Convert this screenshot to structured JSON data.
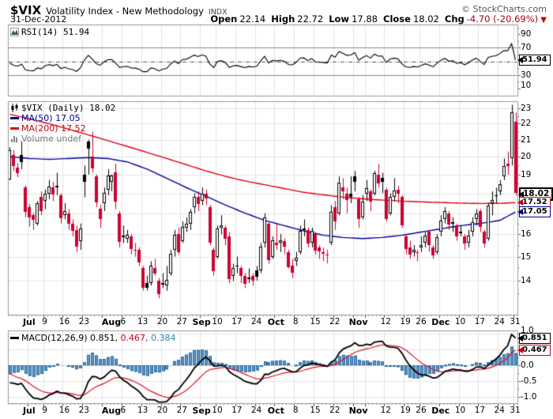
{
  "header": {
    "symbol": "$VIX",
    "title": "Volatility Index - New Methodology",
    "exchange": "INDX",
    "copyright": "© StockCharts.com",
    "date": "31-Dec-2012",
    "quote": [
      {
        "label": "Open",
        "value": "22.14"
      },
      {
        "label": "High",
        "value": "22.72"
      },
      {
        "label": "Low",
        "value": "17.88"
      },
      {
        "label": "Close",
        "value": "18.02"
      },
      {
        "label": "Chg",
        "value": "-4.70 (-20.69%)",
        "down": true
      }
    ],
    "down_arrow": "▼"
  },
  "rsi_panel": {
    "legend": "RSI(14) 51.94",
    "value": 51.94,
    "overbought": 70,
    "oversold": 30,
    "midline": 50,
    "range": [
      0,
      100
    ],
    "axis_ticks": [
      {
        "v": 90,
        "label": "90"
      },
      {
        "v": 70,
        "label": "70"
      },
      {
        "v": 30,
        "label": "30"
      },
      {
        "v": 10,
        "label": "10"
      }
    ],
    "tag": {
      "v": 51.94,
      "value": "51.94",
      "style": "rsi"
    }
  },
  "price_panel": {
    "legend": {
      "symbol": "$VIX (Daily) 18.02",
      "ma50": "MA(50) 17.05",
      "ma200": "MA(200) 17.52",
      "volume": "Volume undef"
    },
    "last": 18.02,
    "ma50_last": 17.05,
    "ma200_last": 17.52,
    "axis_ticks": [
      {
        "v": 23,
        "label": "23"
      },
      {
        "v": 22,
        "label": "22"
      },
      {
        "v": 21,
        "label": "21"
      },
      {
        "v": 20,
        "label": "20"
      },
      {
        "v": 19,
        "label": "19"
      },
      {
        "v": 16,
        "label": "16"
      },
      {
        "v": 15,
        "label": "15"
      },
      {
        "v": 14,
        "label": "14"
      }
    ],
    "grid_values": [
      14,
      15,
      16,
      17,
      18,
      19,
      20,
      21,
      22,
      23
    ],
    "tags": [
      {
        "v": 18.02,
        "value": "18.02",
        "style": "last"
      },
      {
        "v": 17.52,
        "value": "17.52",
        "style": "ma200"
      },
      {
        "v": 17.05,
        "value": "17.05",
        "style": "ma50"
      }
    ]
  },
  "macd_panel": {
    "legend_parts": [
      {
        "text": "MACD(12,26,9) 0.851,",
        "cls": ""
      },
      {
        "text": " 0.467,",
        "cls": "c-sig"
      },
      {
        "text": " 0.384",
        "cls": "c-hist"
      }
    ],
    "macd_last": 0.851,
    "signal_last": 0.467,
    "hist_last": 0.384,
    "range": [
      -1.2,
      1.1
    ],
    "axis_ticks": [
      {
        "v": 1.0,
        "label": "1.0"
      },
      {
        "v": 0.0,
        "label": "0.0"
      },
      {
        "v": -0.5,
        "label": "-0.5"
      },
      {
        "v": -1.0,
        "label": "-1.0"
      }
    ],
    "grid_values": [
      1.0,
      0.5,
      -0.5,
      -1.0
    ],
    "zero_line": 0.0,
    "tags": [
      {
        "v": 0.851,
        "value": "0.851",
        "style": "macd"
      },
      {
        "v": 0.467,
        "value": "0.467",
        "style": "ma200"
      }
    ]
  },
  "x_axis": {
    "week_indices": [
      5,
      9,
      14,
      19,
      24,
      29,
      34,
      39,
      44,
      49,
      53,
      58,
      63,
      68,
      73,
      78,
      83,
      88,
      91,
      96,
      101,
      105,
      110,
      115,
      120,
      125,
      129
    ],
    "labels": [
      {
        "text": "Jul",
        "i": 5,
        "bold": true
      },
      {
        "text": "9",
        "i": 9
      },
      {
        "text": "16",
        "i": 14
      },
      {
        "text": "23",
        "i": 19
      },
      {
        "text": "Aug",
        "i": 26,
        "bold": true
      },
      {
        "text": "6",
        "i": 29
      },
      {
        "text": "13",
        "i": 34
      },
      {
        "text": "20",
        "i": 39
      },
      {
        "text": "27",
        "i": 44
      },
      {
        "text": "Sep",
        "i": 49,
        "bold": true
      },
      {
        "text": "10",
        "i": 53
      },
      {
        "text": "17",
        "i": 58
      },
      {
        "text": "24",
        "i": 63
      },
      {
        "text": "Oct",
        "i": 68,
        "bold": true
      },
      {
        "text": "8",
        "i": 73
      },
      {
        "text": "15",
        "i": 78
      },
      {
        "text": "22",
        "i": 83
      },
      {
        "text": "Nov",
        "i": 89,
        "bold": true
      },
      {
        "text": "12",
        "i": 96
      },
      {
        "text": "19",
        "i": 101
      },
      {
        "text": "26",
        "i": 105
      },
      {
        "text": "Dec",
        "i": 110,
        "bold": true
      },
      {
        "text": "10",
        "i": 115
      },
      {
        "text": "17",
        "i": 120
      },
      {
        "text": "24",
        "i": 125
      },
      {
        "text": "31",
        "i": 129
      }
    ]
  },
  "chart_data": {
    "type": "candlestick",
    "symbol": "$VIX",
    "timeframe": "Daily",
    "start": "25-Jun-2012",
    "end": "31-Dec-2012",
    "log_scale": true,
    "price_range": [
      12.69,
      23.47
    ],
    "indicators": {
      "rsi_period": 14,
      "macd_params": [
        12,
        26,
        9
      ]
    },
    "ohlc": [
      [
        18.75,
        20.55,
        18.7,
        20.38
      ],
      [
        20.1,
        20.4,
        19.2,
        19.45
      ],
      [
        19.4,
        19.65,
        18.85,
        19.09
      ],
      [
        20.1,
        20.9,
        19.3,
        19.71
      ],
      [
        18.3,
        18.4,
        16.8,
        17.08
      ],
      [
        17.3,
        17.45,
        16.35,
        16.8
      ],
      [
        16.9,
        17.0,
        16.2,
        16.66
      ],
      [
        16.5,
        17.6,
        16.4,
        17.49
      ],
      [
        17.8,
        18.1,
        16.9,
        17.1
      ],
      [
        17.6,
        18.2,
        17.2,
        17.98
      ],
      [
        18.0,
        18.7,
        17.7,
        18.37
      ],
      [
        18.3,
        18.6,
        17.6,
        17.95
      ],
      [
        18.4,
        19.1,
        17.9,
        18.33
      ],
      [
        17.9,
        18.0,
        16.5,
        16.74
      ],
      [
        16.9,
        17.5,
        16.7,
        17.11
      ],
      [
        17.0,
        17.2,
        16.2,
        16.48
      ],
      [
        16.5,
        16.7,
        15.9,
        16.16
      ],
      [
        16.2,
        16.4,
        15.2,
        15.45
      ],
      [
        15.7,
        16.5,
        15.3,
        16.27
      ],
      [
        19.0,
        19.5,
        17.8,
        18.62
      ],
      [
        20.9,
        21.0,
        19.0,
        20.47
      ],
      [
        20.0,
        21.5,
        19.1,
        19.34
      ],
      [
        18.9,
        19.0,
        17.3,
        17.53
      ],
      [
        17.2,
        17.4,
        16.3,
        16.7
      ],
      [
        17.5,
        18.3,
        17.1,
        18.03
      ],
      [
        18.2,
        19.3,
        17.9,
        18.93
      ],
      [
        18.6,
        19.0,
        18.1,
        18.96
      ],
      [
        19.1,
        19.6,
        17.2,
        17.57
      ],
      [
        17.0,
        17.1,
        15.4,
        15.64
      ],
      [
        15.9,
        16.4,
        15.6,
        15.95
      ],
      [
        15.8,
        16.2,
        15.6,
        15.99
      ],
      [
        15.9,
        16.0,
        15.1,
        15.32
      ],
      [
        15.3,
        15.6,
        15.0,
        15.27
      ],
      [
        15.3,
        15.4,
        14.6,
        14.74
      ],
      [
        14.5,
        14.6,
        13.6,
        13.7
      ],
      [
        13.9,
        14.2,
        13.6,
        13.7
      ],
      [
        13.9,
        14.8,
        13.8,
        14.63
      ],
      [
        14.5,
        14.9,
        14.2,
        14.3
      ],
      [
        14.0,
        14.1,
        13.3,
        13.45
      ],
      [
        13.9,
        14.3,
        13.7,
        13.85
      ],
      [
        13.8,
        14.6,
        13.6,
        14.02
      ],
      [
        14.3,
        15.3,
        14.2,
        15.11
      ],
      [
        15.3,
        16.2,
        15.0,
        15.96
      ],
      [
        16.0,
        16.3,
        15.1,
        15.18
      ],
      [
        15.7,
        16.6,
        15.6,
        16.35
      ],
      [
        16.3,
        16.8,
        16.1,
        16.49
      ],
      [
        16.5,
        17.2,
        16.2,
        17.06
      ],
      [
        17.3,
        18.0,
        17.0,
        17.83
      ],
      [
        17.8,
        18.1,
        17.1,
        17.47
      ],
      [
        17.6,
        18.3,
        17.4,
        17.98
      ],
      [
        18.0,
        18.2,
        17.4,
        17.74
      ],
      [
        17.3,
        17.4,
        15.5,
        15.6
      ],
      [
        15.3,
        15.4,
        14.2,
        14.38
      ],
      [
        15.0,
        16.4,
        14.9,
        16.27
      ],
      [
        16.3,
        16.9,
        16.0,
        16.41
      ],
      [
        16.3,
        16.4,
        15.5,
        15.8
      ],
      [
        15.9,
        16.1,
        13.9,
        14.05
      ],
      [
        14.2,
        14.7,
        13.98,
        14.51
      ],
      [
        14.6,
        15.0,
        14.3,
        14.59
      ],
      [
        14.5,
        14.6,
        13.9,
        14.18
      ],
      [
        14.2,
        14.3,
        13.7,
        13.88
      ],
      [
        14.1,
        14.5,
        13.9,
        14.13
      ],
      [
        14.2,
        14.3,
        13.8,
        13.98
      ],
      [
        14.4,
        14.6,
        14.0,
        14.15
      ],
      [
        14.4,
        15.6,
        14.3,
        15.43
      ],
      [
        15.6,
        17.0,
        15.4,
        16.81
      ],
      [
        16.5,
        16.6,
        14.7,
        14.84
      ],
      [
        15.0,
        15.9,
        14.9,
        15.73
      ],
      [
        15.6,
        16.5,
        15.3,
        15.5
      ],
      [
        15.6,
        16.0,
        15.2,
        15.72
      ],
      [
        15.7,
        15.8,
        15.1,
        15.42
      ],
      [
        15.2,
        15.3,
        14.5,
        14.55
      ],
      [
        14.6,
        14.9,
        14.1,
        14.33
      ],
      [
        14.8,
        15.2,
        14.6,
        14.96
      ],
      [
        15.2,
        16.4,
        15.1,
        16.15
      ],
      [
        16.2,
        16.7,
        15.9,
        16.28
      ],
      [
        16.2,
        16.3,
        15.4,
        15.59
      ],
      [
        15.6,
        16.3,
        15.4,
        16.14
      ],
      [
        16.0,
        16.1,
        15.1,
        15.27
      ],
      [
        15.4,
        15.5,
        14.9,
        15.22
      ],
      [
        15.2,
        15.4,
        14.8,
        15.13
      ],
      [
        15.1,
        15.3,
        14.7,
        15.05
      ],
      [
        15.6,
        17.4,
        15.5,
        17.06
      ],
      [
        17.3,
        17.6,
        16.2,
        16.6
      ],
      [
        17.0,
        18.9,
        16.9,
        18.56
      ],
      [
        18.3,
        18.8,
        17.7,
        18.12
      ],
      [
        18.0,
        18.3,
        17.0,
        17.66
      ],
      [
        18.0,
        18.9,
        17.5,
        17.81
      ],
      [
        18.9,
        19.2,
        18.1,
        18.6
      ],
      [
        17.7,
        17.8,
        16.3,
        16.7
      ],
      [
        16.8,
        17.9,
        16.7,
        17.59
      ],
      [
        18.0,
        18.7,
        17.6,
        18.26
      ],
      [
        18.1,
        18.2,
        17.1,
        17.58
      ],
      [
        18.0,
        19.2,
        17.9,
        19.08
      ],
      [
        19.0,
        19.6,
        18.3,
        18.53
      ],
      [
        18.8,
        19.1,
        18.0,
        18.61
      ],
      [
        18.2,
        18.3,
        16.6,
        16.71
      ],
      [
        17.0,
        18.0,
        16.9,
        17.81
      ],
      [
        17.8,
        18.8,
        17.6,
        18.13
      ],
      [
        18.2,
        18.4,
        17.5,
        17.99
      ],
      [
        17.8,
        17.9,
        16.3,
        16.41
      ],
      [
        15.9,
        16.0,
        15.1,
        15.32
      ],
      [
        15.4,
        15.7,
        14.9,
        15.08
      ],
      [
        15.2,
        15.5,
        15.0,
        15.31
      ],
      [
        15.2,
        15.3,
        14.8,
        15.14
      ],
      [
        15.4,
        15.9,
        15.2,
        15.5
      ],
      [
        15.6,
        16.1,
        15.4,
        15.92
      ],
      [
        16.1,
        16.2,
        15.2,
        15.51
      ],
      [
        15.4,
        15.5,
        14.9,
        15.06
      ],
      [
        15.2,
        16.0,
        15.1,
        15.87
      ],
      [
        16.1,
        16.9,
        15.9,
        16.64
      ],
      [
        16.7,
        17.3,
        16.5,
        17.11
      ],
      [
        17.0,
        17.1,
        16.2,
        16.46
      ],
      [
        16.5,
        16.8,
        16.1,
        16.58
      ],
      [
        16.4,
        16.5,
        15.7,
        15.9
      ],
      [
        16.1,
        16.4,
        15.9,
        16.06
      ],
      [
        15.9,
        16.0,
        15.3,
        15.57
      ],
      [
        15.6,
        16.2,
        15.4,
        15.95
      ],
      [
        16.1,
        16.8,
        15.9,
        16.56
      ],
      [
        16.7,
        17.2,
        16.4,
        17.0
      ],
      [
        17.1,
        17.2,
        16.1,
        16.34
      ],
      [
        16.1,
        16.2,
        15.4,
        15.57
      ],
      [
        15.8,
        17.5,
        15.7,
        17.36
      ],
      [
        17.5,
        18.1,
        16.9,
        17.67
      ],
      [
        17.9,
        18.3,
        17.5,
        17.84
      ],
      [
        18.1,
        18.7,
        17.9,
        18.47
      ],
      [
        18.9,
        19.9,
        18.7,
        19.48
      ],
      [
        19.6,
        20.3,
        19.0,
        19.47
      ],
      [
        19.9,
        23.23,
        19.5,
        22.72
      ],
      [
        22.14,
        22.72,
        17.88,
        18.02
      ]
    ],
    "ma50": [
      [
        0,
        20.0
      ],
      [
        5,
        19.9
      ],
      [
        10,
        19.85
      ],
      [
        15,
        19.9
      ],
      [
        20,
        19.95
      ],
      [
        25,
        19.9
      ],
      [
        30,
        19.7
      ],
      [
        35,
        19.3
      ],
      [
        40,
        18.8
      ],
      [
        45,
        18.3
      ],
      [
        50,
        17.85
      ],
      [
        55,
        17.4
      ],
      [
        60,
        17.0
      ],
      [
        65,
        16.65
      ],
      [
        70,
        16.4
      ],
      [
        75,
        16.15
      ],
      [
        80,
        15.95
      ],
      [
        85,
        15.85
      ],
      [
        90,
        15.8
      ],
      [
        95,
        15.85
      ],
      [
        100,
        15.95
      ],
      [
        105,
        16.1
      ],
      [
        110,
        16.25
      ],
      [
        115,
        16.4
      ],
      [
        120,
        16.5
      ],
      [
        125,
        16.65
      ],
      [
        129,
        17.05
      ]
    ],
    "ma200": [
      [
        0,
        22.6
      ],
      [
        5,
        22.3
      ],
      [
        10,
        22.0
      ],
      [
        15,
        21.65
      ],
      [
        20,
        21.3
      ],
      [
        25,
        20.95
      ],
      [
        30,
        20.6
      ],
      [
        35,
        20.25
      ],
      [
        40,
        19.9
      ],
      [
        45,
        19.55
      ],
      [
        50,
        19.2
      ],
      [
        55,
        18.9
      ],
      [
        60,
        18.65
      ],
      [
        65,
        18.45
      ],
      [
        70,
        18.25
      ],
      [
        75,
        18.05
      ],
      [
        80,
        17.92
      ],
      [
        85,
        17.8
      ],
      [
        90,
        17.72
      ],
      [
        95,
        17.65
      ],
      [
        100,
        17.6
      ],
      [
        105,
        17.56
      ],
      [
        110,
        17.53
      ],
      [
        115,
        17.5
      ],
      [
        120,
        17.48
      ],
      [
        125,
        17.49
      ],
      [
        129,
        17.52
      ]
    ]
  },
  "colors": {
    "candle_up": "#000000",
    "candle_down": "#cc0233",
    "ma50": "#000099",
    "ma200": "#dd0011",
    "macd_line": "#000000",
    "signal_line": "#e01020",
    "hist_fill": "#5e96c6",
    "hist_stroke": "#27689f",
    "grid": "#e3e3e3",
    "zero_grid": "#c8c8c8",
    "panel_border": "#999999",
    "rsi_band": "#888888",
    "rsi_mid": "#555555",
    "tick": "#666666",
    "down_text": "#a50021",
    "volume_text": "#777777",
    "rsi_icon_fill": "#2e5e3e"
  }
}
